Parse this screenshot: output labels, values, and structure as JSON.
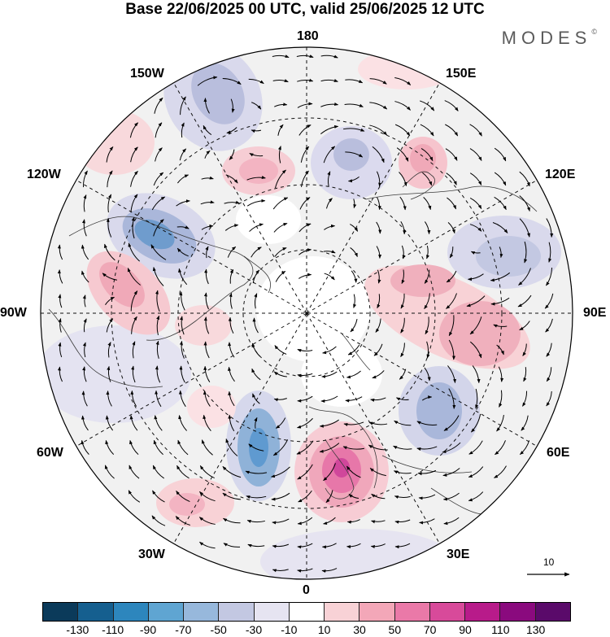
{
  "header": {
    "title": "Base 22/06/2025 00 UTC, valid 25/06/2025 12 UTC",
    "brand": "MODES"
  },
  "map": {
    "projection": "polar stereographic (north pole centered)",
    "longitude_labels": {
      "top": "180",
      "bottom": "0",
      "left": "90W",
      "right": "90E",
      "upper_left_outer": "150W",
      "upper_left_inner": "120W",
      "upper_right_outer": "150E",
      "upper_right_inner": "120E",
      "lower_left_inner": "60W",
      "lower_left_outer": "30W",
      "lower_right_inner": "60E",
      "lower_right_outer": "30E"
    }
  },
  "colorbar": {
    "tick_labels": [
      "-130",
      "-110",
      "-90",
      "-70",
      "-50",
      "-30",
      "-10",
      "10",
      "30",
      "50",
      "70",
      "90",
      "110",
      "130"
    ],
    "colors": [
      "#0b3a5a",
      "#155f8f",
      "#2d86bd",
      "#5fa5d2",
      "#97b8dc",
      "#c3c8e2",
      "#e6e4f1",
      "#ffffff",
      "#f8d2d6",
      "#f3a7b8",
      "#ea79a8",
      "#d84a9a",
      "#b81b8a",
      "#8a0a7e",
      "#5a0a6a"
    ]
  },
  "vector_key": {
    "label": "10"
  }
}
